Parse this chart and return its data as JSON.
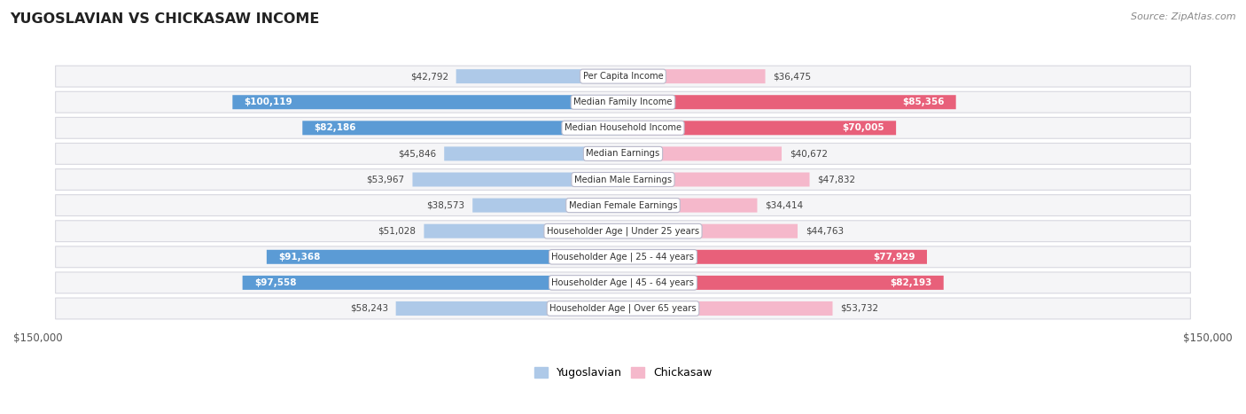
{
  "title": "YUGOSLAVIAN VS CHICKASAW INCOME",
  "source": "Source: ZipAtlas.com",
  "categories": [
    "Per Capita Income",
    "Median Family Income",
    "Median Household Income",
    "Median Earnings",
    "Median Male Earnings",
    "Median Female Earnings",
    "Householder Age | Under 25 years",
    "Householder Age | 25 - 44 years",
    "Householder Age | 45 - 64 years",
    "Householder Age | Over 65 years"
  ],
  "yugoslavian": [
    42792,
    100119,
    82186,
    45846,
    53967,
    38573,
    51028,
    91368,
    97558,
    58243
  ],
  "chickasaw": [
    36475,
    85356,
    70005,
    40672,
    47832,
    34414,
    44763,
    77929,
    82193,
    53732
  ],
  "max_val": 150000,
  "blue_light": "#aec9e8",
  "blue_dark": "#5b9bd5",
  "pink_light": "#f5b8cb",
  "pink_dark": "#e8607a",
  "row_bg": "#f5f5f7",
  "row_border": "#d8d8e0",
  "threshold_dark_blue": 80000,
  "threshold_dark_pink": 65000
}
